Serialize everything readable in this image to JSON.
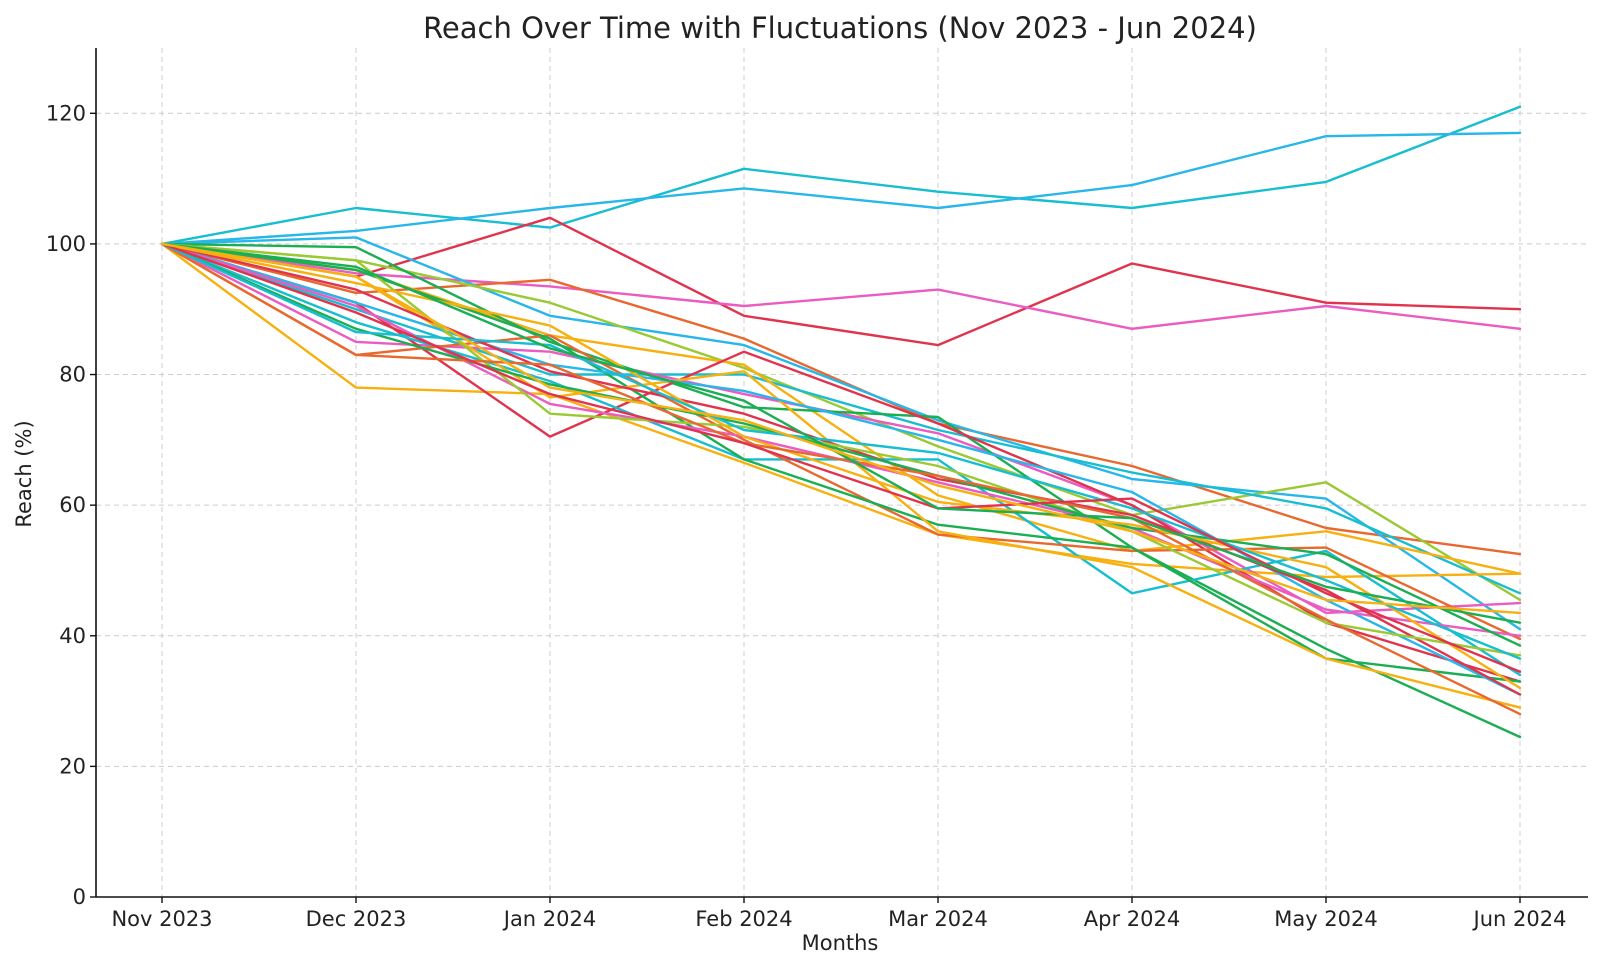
{
  "chart_data": {
    "type": "line",
    "title": "Reach Over Time with Fluctuations (Nov 2023 - Jun 2024)",
    "xlabel": "Months",
    "ylabel": "Reach (%)",
    "categories": [
      "Nov 2023",
      "Dec 2023",
      "Jan 2024",
      "Feb 2024",
      "Mar 2024",
      "Apr 2024",
      "May 2024",
      "Jun 2024"
    ],
    "ylim": [
      0,
      130
    ],
    "yticks": [
      0,
      20,
      40,
      60,
      80,
      100,
      120
    ],
    "grid": true,
    "legend": "none",
    "series": [
      {
        "color": "#17becf",
        "values": [
          100,
          105.5,
          102.5,
          111.5,
          108,
          105.5,
          109.5,
          121
        ]
      },
      {
        "color": "#29b6e8",
        "values": [
          100,
          102,
          105.5,
          108.5,
          105.5,
          109,
          116.5,
          117
        ]
      },
      {
        "color": "#e0334e",
        "values": [
          100,
          95,
          104,
          89,
          84.5,
          97,
          91,
          90
        ]
      },
      {
        "color": "#ea5cc1",
        "values": [
          100,
          95.5,
          93.5,
          90.5,
          93,
          87,
          90.5,
          87
        ]
      },
      {
        "color": "#e8692f",
        "values": [
          100,
          92.5,
          94.5,
          85.5,
          72.5,
          66,
          56.5,
          52.5
        ]
      },
      {
        "color": "#29b6e8",
        "values": [
          100,
          101,
          89,
          84.5,
          73,
          64,
          61,
          41
        ]
      },
      {
        "color": "#9bc934",
        "values": [
          100,
          97.5,
          91,
          81,
          69,
          58.5,
          63.5,
          45.5
        ]
      },
      {
        "color": "#17becf",
        "values": [
          100,
          90,
          80,
          80,
          71.5,
          65,
          59.5,
          46.5
        ]
      },
      {
        "color": "#f6b010",
        "values": [
          100,
          96,
          86,
          81.5,
          61.5,
          53,
          56,
          49.5
        ]
      },
      {
        "color": "#f6b010",
        "values": [
          100,
          78,
          77,
          66.5,
          55.5,
          51,
          49,
          49.5
        ]
      },
      {
        "color": "#ea5cc1",
        "values": [
          100,
          85,
          83.5,
          77,
          71,
          60,
          43.5,
          45
        ]
      },
      {
        "color": "#1bae52",
        "values": [
          100,
          99.5,
          85,
          75,
          73.5,
          53.5,
          38,
          24.5
        ]
      },
      {
        "color": "#e0334e",
        "values": [
          100,
          91,
          70.5,
          83.5,
          72.5,
          60,
          42,
          33
        ]
      },
      {
        "color": "#17becf",
        "values": [
          100,
          88,
          79,
          67,
          67,
          46.5,
          53,
          34
        ]
      },
      {
        "color": "#e8692f",
        "values": [
          100,
          83,
          86,
          70,
          55.5,
          53,
          53.5,
          39.5
        ]
      },
      {
        "color": "#1bae52",
        "values": [
          100,
          96,
          85.5,
          67,
          57,
          53.5,
          36.5,
          33
        ]
      },
      {
        "color": "#f6b010",
        "values": [
          100,
          95,
          76.5,
          80.5,
          56,
          50.5,
          36.5,
          29
        ]
      },
      {
        "color": "#29b6e8",
        "values": [
          100,
          91,
          81.5,
          77.5,
          70,
          62,
          45.5,
          31
        ]
      },
      {
        "color": "#ea5cc1",
        "values": [
          100,
          90.5,
          75.5,
          70.5,
          63.5,
          56.5,
          44,
          40
        ]
      },
      {
        "color": "#e0334e",
        "values": [
          100,
          93,
          80.5,
          74,
          64,
          58.5,
          47,
          31
        ]
      },
      {
        "color": "#9bc934",
        "values": [
          100,
          97.5,
          74,
          72,
          66,
          56,
          42,
          37
        ]
      },
      {
        "color": "#1bae52",
        "values": [
          100,
          87,
          78.5,
          72.5,
          64.5,
          56.5,
          52.5,
          38.5
        ]
      },
      {
        "color": "#f6b010",
        "values": [
          100,
          94,
          87.5,
          70.5,
          60.5,
          57,
          50.5,
          32
        ]
      },
      {
        "color": "#e8692f",
        "values": [
          100,
          83,
          81.5,
          69.5,
          64.5,
          58,
          42.5,
          28
        ]
      },
      {
        "color": "#17becf",
        "values": [
          100,
          86.5,
          84.5,
          71.5,
          68,
          59.5,
          48.5,
          36.5
        ]
      },
      {
        "color": "#e0334e",
        "values": [
          100,
          89.5,
          77,
          69.5,
          59.5,
          61,
          46.5,
          34.5
        ]
      },
      {
        "color": "#1bae52",
        "values": [
          100,
          96.5,
          84,
          76,
          59.5,
          58,
          47.5,
          42
        ]
      },
      {
        "color": "#f6b010",
        "values": [
          100,
          95,
          78,
          73,
          63,
          56,
          45.5,
          43.5
        ]
      }
    ]
  }
}
